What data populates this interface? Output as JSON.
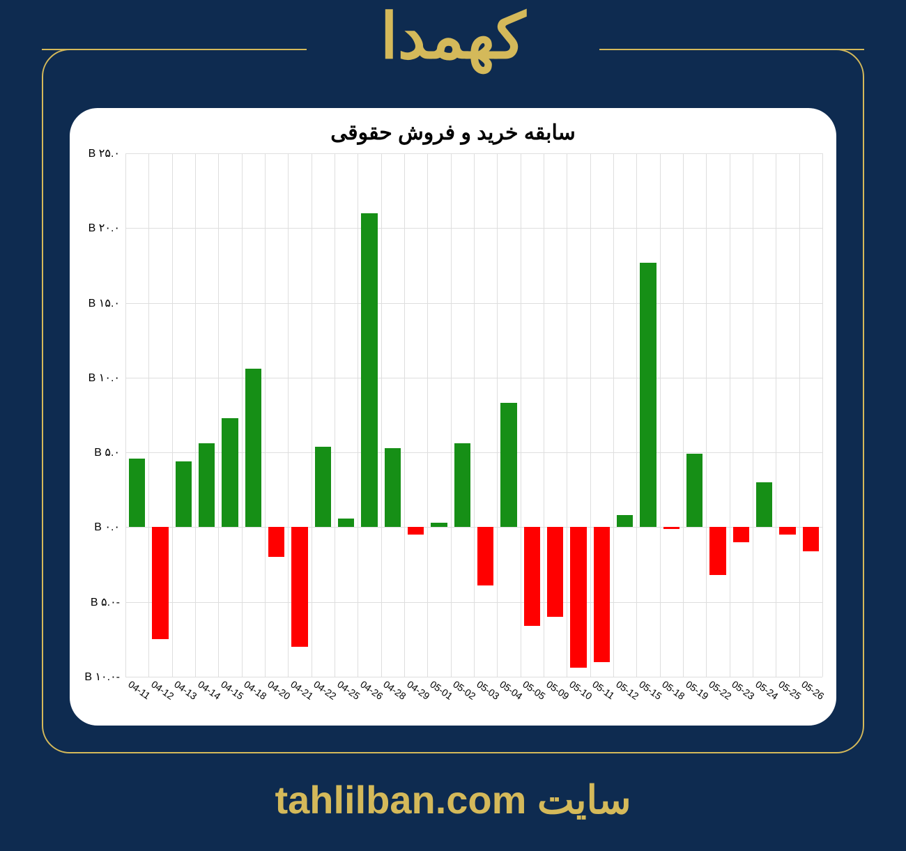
{
  "header": {
    "title": "کهمدا",
    "title_color": "#d4b95a",
    "title_fontsize": 90
  },
  "footer": {
    "prefix": "سایت",
    "site": "tahlilban.com",
    "color": "#d4b95a",
    "fontsize": 56
  },
  "frame": {
    "border_color": "#d4b95a",
    "background_color": "#0e2b50"
  },
  "chart": {
    "type": "bar",
    "title": "سابقه خرید و فروش حقوقی",
    "title_fontsize": 30,
    "title_color": "#000000",
    "background_color": "#ffffff",
    "grid_color": "#dedede",
    "positive_color": "#168f16",
    "negative_color": "#ff0000",
    "bar_width": 0.7,
    "ylim": [
      -10,
      25
    ],
    "ytick_step": 5,
    "ytick_suffix": " B",
    "ytick_labels": [
      "۲۵.۰ B",
      "۲۰.۰ B",
      "۱۵.۰ B",
      "۱۰.۰ B",
      "۵.۰ B",
      "۰.۰ B",
      "-۵.۰ B",
      "-۱۰.۰ B"
    ],
    "ytick_values": [
      25,
      20,
      15,
      10,
      5,
      0,
      -5,
      -10
    ],
    "xtick_rotation": 35,
    "xtick_fontsize": 14,
    "ytick_fontsize": 16,
    "categories": [
      "04-11",
      "04-12",
      "04-13",
      "04-14",
      "04-15",
      "04-18",
      "04-20",
      "04-21",
      "04-22",
      "04-25",
      "04-26",
      "04-28",
      "04-29",
      "05-01",
      "05-02",
      "05-03",
      "05-04",
      "05-05",
      "05-09",
      "05-10",
      "05-11",
      "05-12",
      "05-15",
      "05-18",
      "05-19",
      "05-22",
      "05-23",
      "05-24",
      "05-25",
      "05-26"
    ],
    "values": [
      4.6,
      -7.5,
      4.4,
      5.6,
      7.3,
      10.6,
      -2.0,
      -8.0,
      5.4,
      0.6,
      21.0,
      5.3,
      -0.5,
      0.3,
      5.6,
      -3.9,
      8.3,
      -6.6,
      -6.0,
      -9.4,
      -9.0,
      0.8,
      17.7,
      -0.1,
      4.9,
      -3.2,
      -1.0,
      3.0,
      -0.5,
      -1.6
    ]
  }
}
